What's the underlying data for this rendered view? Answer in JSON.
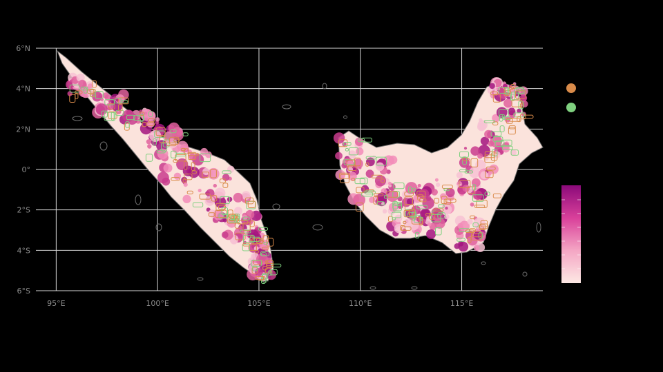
{
  "map": {
    "x_axis": {
      "range": [
        94,
        119
      ],
      "ticks": [
        {
          "value": 95,
          "label": "95°E"
        },
        {
          "value": 100,
          "label": "100°E"
        },
        {
          "value": 105,
          "label": "105°E"
        },
        {
          "value": 110,
          "label": "110°E"
        },
        {
          "value": 115,
          "label": "115°E"
        }
      ]
    },
    "y_axis": {
      "range": [
        -6,
        6
      ],
      "ticks": [
        {
          "value": 6,
          "label": "6°N"
        },
        {
          "value": 4,
          "label": "4°N"
        },
        {
          "value": 2,
          "label": "2°N"
        },
        {
          "value": 0,
          "label": "0°"
        },
        {
          "value": -2,
          "label": "2°S"
        },
        {
          "value": -4,
          "label": "4°S"
        },
        {
          "value": -6,
          "label": "6°S"
        }
      ]
    },
    "grid": true,
    "background_color": "#000000",
    "regions": [
      "Sumatra",
      "Borneo"
    ],
    "legend_points": [
      {
        "color": "#d98b4a"
      },
      {
        "color": "#7fd07f"
      }
    ],
    "gradient_legend": {
      "colors": [
        "#fde8e4",
        "#f4a6c4",
        "#d9409a",
        "#8b0a7a"
      ]
    },
    "colors": {
      "outline_gray": "#6e6e6e",
      "white_fill": "#ffffff",
      "orange_outline": "#d98b4a",
      "green_outline": "#7fd07f",
      "pink": "#e0629e",
      "magenta": "#a3147f"
    }
  }
}
